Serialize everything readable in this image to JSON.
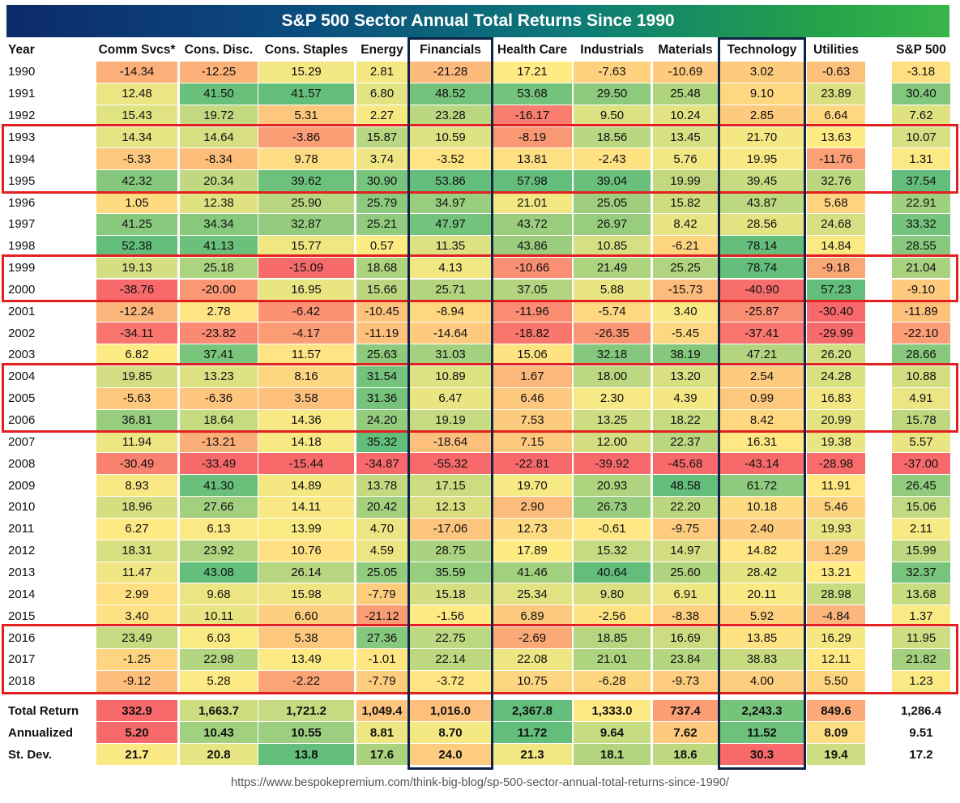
{
  "chart_data": {
    "type": "table",
    "title": "S&P 500 Sector Annual Total Returns Since 1990",
    "year_header": "Year",
    "columns": [
      "Comm Svcs*",
      "Cons. Disc.",
      "Cons. Staples",
      "Energy",
      "Financials",
      "Health Care",
      "Industrials",
      "Materials",
      "Technology",
      "Utilities",
      "S&P 500"
    ],
    "rows": [
      {
        "year": "1990",
        "values": [
          "-14.34",
          "-12.25",
          "15.29",
          "2.81",
          "-21.28",
          "17.21",
          "-7.63",
          "-10.69",
          "3.02",
          "-0.63",
          "-3.18"
        ]
      },
      {
        "year": "1991",
        "values": [
          "12.48",
          "41.50",
          "41.57",
          "6.80",
          "48.52",
          "53.68",
          "29.50",
          "25.48",
          "9.10",
          "23.89",
          "30.40"
        ]
      },
      {
        "year": "1992",
        "values": [
          "15.43",
          "19.72",
          "5.31",
          "2.27",
          "23.28",
          "-16.17",
          "9.50",
          "10.24",
          "2.85",
          "6.64",
          "7.62"
        ]
      },
      {
        "year": "1993",
        "values": [
          "14.34",
          "14.64",
          "-3.86",
          "15.87",
          "10.59",
          "-8.19",
          "18.56",
          "13.45",
          "21.70",
          "13.63",
          "10.07"
        ]
      },
      {
        "year": "1994",
        "values": [
          "-5.33",
          "-8.34",
          "9.78",
          "3.74",
          "-3.52",
          "13.81",
          "-2.43",
          "5.76",
          "19.95",
          "-11.76",
          "1.31"
        ]
      },
      {
        "year": "1995",
        "values": [
          "42.32",
          "20.34",
          "39.62",
          "30.90",
          "53.86",
          "57.98",
          "39.04",
          "19.99",
          "39.45",
          "32.76",
          "37.54"
        ]
      },
      {
        "year": "1996",
        "values": [
          "1.05",
          "12.38",
          "25.90",
          "25.79",
          "34.97",
          "21.01",
          "25.05",
          "15.82",
          "43.87",
          "5.68",
          "22.91"
        ]
      },
      {
        "year": "1997",
        "values": [
          "41.25",
          "34.34",
          "32.87",
          "25.21",
          "47.97",
          "43.72",
          "26.97",
          "8.42",
          "28.56",
          "24.68",
          "33.32"
        ]
      },
      {
        "year": "1998",
        "values": [
          "52.38",
          "41.13",
          "15.77",
          "0.57",
          "11.35",
          "43.86",
          "10.85",
          "-6.21",
          "78.14",
          "14.84",
          "28.55"
        ]
      },
      {
        "year": "1999",
        "values": [
          "19.13",
          "25.18",
          "-15.09",
          "18.68",
          "4.13",
          "-10.66",
          "21.49",
          "25.25",
          "78.74",
          "-9.18",
          "21.04"
        ]
      },
      {
        "year": "2000",
        "values": [
          "-38.76",
          "-20.00",
          "16.95",
          "15.66",
          "25.71",
          "37.05",
          "5.88",
          "-15.73",
          "-40.90",
          "57.23",
          "-9.10"
        ]
      },
      {
        "year": "2001",
        "values": [
          "-12.24",
          "2.78",
          "-6.42",
          "-10.45",
          "-8.94",
          "-11.96",
          "-5.74",
          "3.40",
          "-25.87",
          "-30.40",
          "-11.89"
        ]
      },
      {
        "year": "2002",
        "values": [
          "-34.11",
          "-23.82",
          "-4.17",
          "-11.19",
          "-14.64",
          "-18.82",
          "-26.35",
          "-5.45",
          "-37.41",
          "-29.99",
          "-22.10"
        ]
      },
      {
        "year": "2003",
        "values": [
          "6.82",
          "37.41",
          "11.57",
          "25.63",
          "31.03",
          "15.06",
          "32.18",
          "38.19",
          "47.21",
          "26.20",
          "28.66"
        ]
      },
      {
        "year": "2004",
        "values": [
          "19.85",
          "13.23",
          "8.16",
          "31.54",
          "10.89",
          "1.67",
          "18.00",
          "13.20",
          "2.54",
          "24.28",
          "10.88"
        ]
      },
      {
        "year": "2005",
        "values": [
          "-5.63",
          "-6.36",
          "3.58",
          "31.36",
          "6.47",
          "6.46",
          "2.30",
          "4.39",
          "0.99",
          "16.83",
          "4.91"
        ]
      },
      {
        "year": "2006",
        "values": [
          "36.81",
          "18.64",
          "14.36",
          "24.20",
          "19.19",
          "7.53",
          "13.25",
          "18.22",
          "8.42",
          "20.99",
          "15.78"
        ]
      },
      {
        "year": "2007",
        "values": [
          "11.94",
          "-13.21",
          "14.18",
          "35.32",
          "-18.64",
          "7.15",
          "12.00",
          "22.37",
          "16.31",
          "19.38",
          "5.57"
        ]
      },
      {
        "year": "2008",
        "values": [
          "-30.49",
          "-33.49",
          "-15.44",
          "-34.87",
          "-55.32",
          "-22.81",
          "-39.92",
          "-45.68",
          "-43.14",
          "-28.98",
          "-37.00"
        ]
      },
      {
        "year": "2009",
        "values": [
          "8.93",
          "41.30",
          "14.89",
          "13.78",
          "17.15",
          "19.70",
          "20.93",
          "48.58",
          "61.72",
          "11.91",
          "26.45"
        ]
      },
      {
        "year": "2010",
        "values": [
          "18.96",
          "27.66",
          "14.11",
          "20.42",
          "12.13",
          "2.90",
          "26.73",
          "22.20",
          "10.18",
          "5.46",
          "15.06"
        ]
      },
      {
        "year": "2011",
        "values": [
          "6.27",
          "6.13",
          "13.99",
          "4.70",
          "-17.06",
          "12.73",
          "-0.61",
          "-9.75",
          "2.40",
          "19.93",
          "2.11"
        ]
      },
      {
        "year": "2012",
        "values": [
          "18.31",
          "23.92",
          "10.76",
          "4.59",
          "28.75",
          "17.89",
          "15.32",
          "14.97",
          "14.82",
          "1.29",
          "15.99"
        ]
      },
      {
        "year": "2013",
        "values": [
          "11.47",
          "43.08",
          "26.14",
          "25.05",
          "35.59",
          "41.46",
          "40.64",
          "25.60",
          "28.42",
          "13.21",
          "32.37"
        ]
      },
      {
        "year": "2014",
        "values": [
          "2.99",
          "9.68",
          "15.98",
          "-7.79",
          "15.18",
          "25.34",
          "9.80",
          "6.91",
          "20.11",
          "28.98",
          "13.68"
        ]
      },
      {
        "year": "2015",
        "values": [
          "3.40",
          "10.11",
          "6.60",
          "-21.12",
          "-1.56",
          "6.89",
          "-2.56",
          "-8.38",
          "5.92",
          "-4.84",
          "1.37"
        ]
      },
      {
        "year": "2016",
        "values": [
          "23.49",
          "6.03",
          "5.38",
          "27.36",
          "22.75",
          "-2.69",
          "18.85",
          "16.69",
          "13.85",
          "16.29",
          "11.95"
        ]
      },
      {
        "year": "2017",
        "values": [
          "-1.25",
          "22.98",
          "13.49",
          "-1.01",
          "22.14",
          "22.08",
          "21.01",
          "23.84",
          "38.83",
          "12.11",
          "21.82"
        ]
      },
      {
        "year": "2018",
        "values": [
          "-9.12",
          "5.28",
          "-2.22",
          "-7.79",
          "-3.72",
          "10.75",
          "-6.28",
          "-9.73",
          "4.00",
          "5.50",
          "1.23"
        ]
      }
    ],
    "summary": [
      {
        "label": "Total Return",
        "values": [
          "332.9",
          "1,663.7",
          "1,721.2",
          "1,049.4",
          "1,016.0",
          "2,367.8",
          "1,333.0",
          "737.4",
          "2,243.3",
          "849.6",
          "1,286.4"
        ]
      },
      {
        "label": "Annualized",
        "values": [
          "5.20",
          "10.43",
          "10.55",
          "8.81",
          "8.70",
          "11.72",
          "9.64",
          "7.62",
          "11.52",
          "8.09",
          "9.51"
        ]
      },
      {
        "label": "St. Dev.",
        "values": [
          "21.7",
          "20.8",
          "13.8",
          "17.6",
          "24.0",
          "21.3",
          "18.1",
          "18.6",
          "30.3",
          "19.4",
          "17.2"
        ]
      }
    ],
    "highlighted_year_groups": [
      [
        "1993",
        "1995"
      ],
      [
        "1999",
        "2000"
      ],
      [
        "2004",
        "2006"
      ],
      [
        "2016",
        "2018"
      ]
    ],
    "highlighted_columns": [
      "Financials",
      "Technology"
    ],
    "color_scale": {
      "low": "#f8696b",
      "mid": "#ffeb84",
      "high": "#63be7b",
      "sp500_low": "#f8696b",
      "sp500_high": "#63be7b"
    },
    "source": "https://www.bespokepremium.com/think-big-blog/sp-500-sector-annual-total-returns-since-1990/"
  }
}
